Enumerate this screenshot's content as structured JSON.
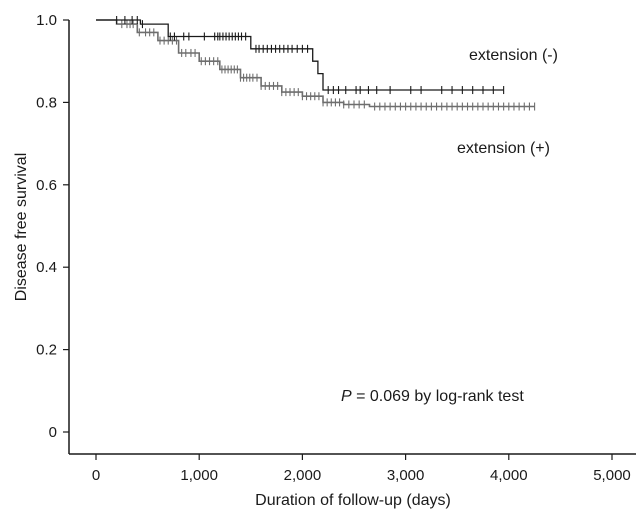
{
  "chart_data": {
    "type": "line",
    "subtype": "kaplan-meier step with censor ticks",
    "title": "",
    "xlabel": "Duration of follow-up (days)",
    "ylabel": "Disease free survival",
    "xlim": [
      0,
      5000
    ],
    "ylim": [
      0,
      1.0
    ],
    "x_ticks": [
      0,
      1000,
      2000,
      3000,
      4000,
      5000
    ],
    "x_tick_labels": [
      "0",
      "1,000",
      "2,000",
      "3,000",
      "4,000",
      "5,000"
    ],
    "y_ticks": [
      0,
      0.2,
      0.4,
      0.6,
      0.8,
      1.0
    ],
    "y_tick_labels": [
      "0",
      "0.2",
      "0.4",
      "0.6",
      "0.8",
      "1.0"
    ],
    "grid": false,
    "series": [
      {
        "name": "extension (-)",
        "color": "#1a1a1a",
        "x": [
          0,
          430,
          700,
          1500,
          2100,
          2150,
          2200,
          3950
        ],
        "y": [
          1.0,
          0.99,
          0.96,
          0.93,
          0.9,
          0.87,
          0.83,
          0.83
        ],
        "censor_x": [
          200,
          280,
          350,
          400,
          450,
          720,
          760,
          850,
          900,
          1050,
          1150,
          1180,
          1200,
          1230,
          1260,
          1290,
          1320,
          1350,
          1380,
          1410,
          1450,
          1550,
          1580,
          1620,
          1660,
          1700,
          1740,
          1780,
          1820,
          1860,
          1900,
          1950,
          2000,
          2050,
          2250,
          2300,
          2350,
          2420,
          2520,
          2560,
          2640,
          2720,
          2850,
          3050,
          3150,
          3350,
          3450,
          3550,
          3650,
          3750,
          3850,
          3950
        ]
      },
      {
        "name": "extension (+)",
        "color": "#6e6e6e",
        "x": [
          0,
          200,
          400,
          600,
          800,
          1000,
          1200,
          1400,
          1600,
          1800,
          2000,
          2200,
          2400,
          2650,
          4250
        ],
        "y": [
          1.0,
          0.99,
          0.97,
          0.95,
          0.92,
          0.9,
          0.88,
          0.86,
          0.84,
          0.825,
          0.815,
          0.8,
          0.795,
          0.79,
          0.79
        ],
        "censor_x": [
          250,
          300,
          330,
          360,
          420,
          480,
          520,
          560,
          620,
          660,
          700,
          740,
          780,
          830,
          870,
          920,
          960,
          1020,
          1060,
          1100,
          1140,
          1180,
          1220,
          1250,
          1280,
          1310,
          1340,
          1370,
          1400,
          1430,
          1460,
          1490,
          1520,
          1560,
          1600,
          1640,
          1680,
          1720,
          1760,
          1800,
          1840,
          1880,
          1920,
          1960,
          2000,
          2040,
          2080,
          2120,
          2160,
          2200,
          2240,
          2280,
          2320,
          2360,
          2400,
          2450,
          2500,
          2550,
          2600,
          2700,
          2750,
          2800,
          2850,
          2900,
          2950,
          3000,
          3050,
          3100,
          3150,
          3200,
          3250,
          3300,
          3350,
          3400,
          3450,
          3500,
          3550,
          3600,
          3650,
          3700,
          3750,
          3800,
          3850,
          3900,
          3950,
          4000,
          4050,
          4100,
          4150,
          4200,
          4250
        ]
      }
    ],
    "annotation": {
      "p_label": "P",
      "text": " = 0.069 by log-rank test"
    }
  }
}
